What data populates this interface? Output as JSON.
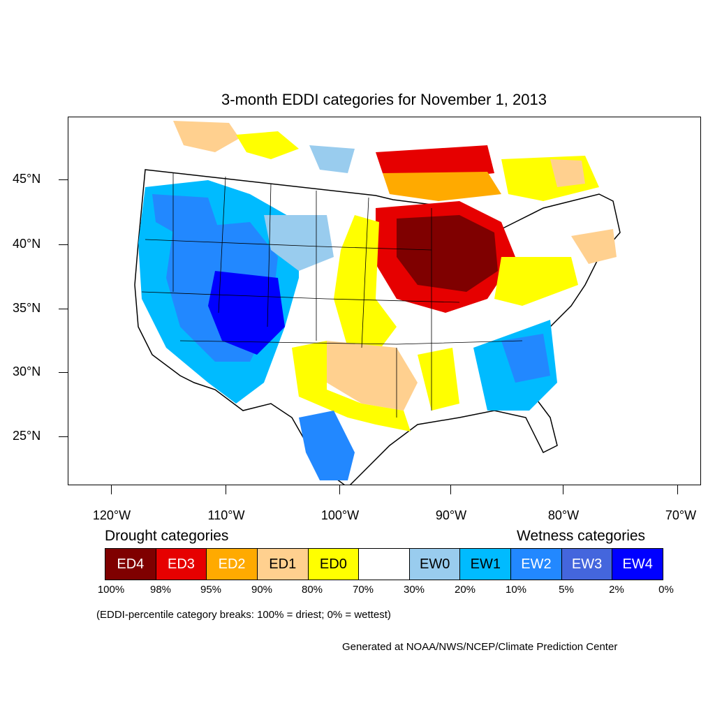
{
  "map": {
    "title": "3-month EDDI categories for November 1, 2013",
    "lat_labels": [
      "45°N",
      "40°N",
      "35°N",
      "30°N",
      "25°N"
    ],
    "lon_labels": [
      "120°W",
      "110°W",
      "100°W",
      "90°W",
      "80°W",
      "70°W"
    ],
    "regions": {
      "land_fill": "#ffffff",
      "outline_color": "#000000"
    }
  },
  "legend": {
    "drought_heading": "Drought categories",
    "wetness_heading": "Wetness categories",
    "categories": [
      {
        "label": "ED4",
        "color": "#7f0000",
        "text_color": "#ffffff"
      },
      {
        "label": "ED3",
        "color": "#e60000",
        "text_color": "#ffffff"
      },
      {
        "label": "ED2",
        "color": "#ffaa00",
        "text_color": "#ffffff"
      },
      {
        "label": "ED1",
        "color": "#ffd08f",
        "text_color": "#000000"
      },
      {
        "label": "ED0",
        "color": "#ffff00",
        "text_color": "#000000"
      },
      {
        "label": "",
        "color": "#ffffff",
        "text_color": "#000000"
      },
      {
        "label": "EW0",
        "color": "#99ccee",
        "text_color": "#000000"
      },
      {
        "label": "EW1",
        "color": "#00bbff",
        "text_color": "#000000"
      },
      {
        "label": "EW2",
        "color": "#2288ff",
        "text_color": "#ffffff"
      },
      {
        "label": "EW3",
        "color": "#4466dd",
        "text_color": "#ffffff"
      },
      {
        "label": "EW4",
        "color": "#0000ff",
        "text_color": "#ffffff"
      }
    ],
    "percentiles": [
      "100%",
      "98%",
      "95%",
      "90%",
      "80%",
      "70%",
      "30%",
      "20%",
      "10%",
      "5%",
      "2%",
      "0%"
    ],
    "note": "(EDDI-percentile category breaks: 100% = driest; 0% = wettest)"
  },
  "credit": "Generated at NOAA/NWS/NCEP/Climate Prediction Center"
}
